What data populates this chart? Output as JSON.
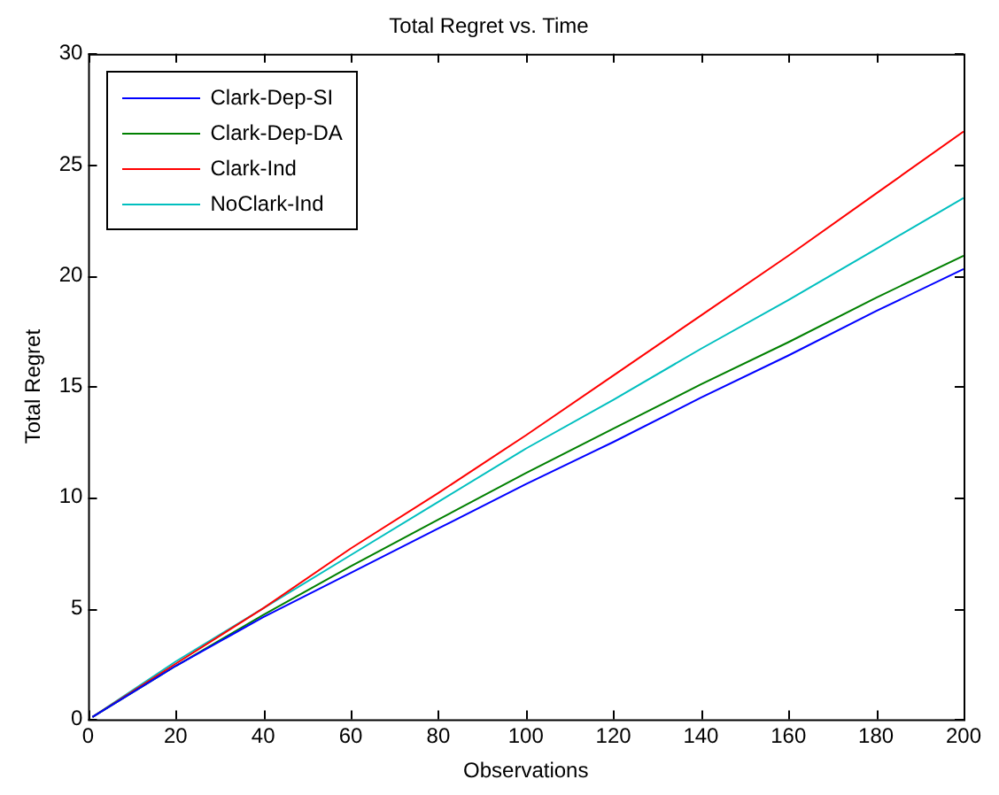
{
  "chart_data": {
    "type": "line",
    "title": "Total Regret vs. Time",
    "xlabel": "Observations",
    "ylabel": "Total Regret",
    "x": [
      1,
      20,
      40,
      60,
      80,
      100,
      120,
      140,
      160,
      180,
      200
    ],
    "series": [
      {
        "name": "Clark-Dep-SI",
        "color": "#0000ff",
        "values": [
          0.1,
          2.4,
          4.6,
          6.6,
          8.6,
          10.6,
          12.5,
          14.5,
          16.4,
          18.4,
          20.3
        ]
      },
      {
        "name": "Clark-Dep-DA",
        "color": "#008000",
        "values": [
          0.1,
          2.4,
          4.7,
          6.9,
          9.0,
          11.1,
          13.1,
          15.1,
          17.0,
          19.0,
          20.9
        ]
      },
      {
        "name": "Clark-Ind",
        "color": "#ff0000",
        "values": [
          0.1,
          2.5,
          5.0,
          7.7,
          10.2,
          12.8,
          15.5,
          18.2,
          20.9,
          23.7,
          26.5
        ]
      },
      {
        "name": "NoClark-Ind",
        "color": "#00bfbf",
        "values": [
          0.1,
          2.6,
          5.0,
          7.4,
          9.8,
          12.2,
          14.4,
          16.7,
          18.9,
          21.2,
          23.5
        ]
      }
    ],
    "xlim": [
      0,
      200
    ],
    "xticks": [
      0,
      20,
      40,
      60,
      80,
      100,
      120,
      140,
      160,
      180,
      200
    ],
    "ylim": [
      0,
      30
    ],
    "yticks": [
      0,
      5,
      10,
      15,
      20,
      25,
      30
    ],
    "grid": false,
    "legend": "top left",
    "marker": "none",
    "line_style": "solid"
  }
}
